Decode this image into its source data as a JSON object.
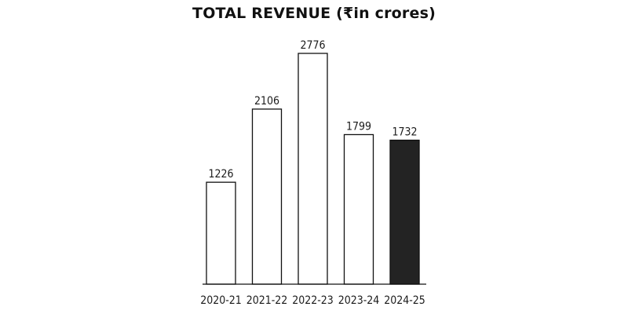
{
  "chart_data": {
    "type": "bar",
    "title": "TOTAL REVENUE (₹in crores)",
    "xlabel": "",
    "ylabel": "",
    "categories": [
      "2020-21",
      "2021-22",
      "2022-23",
      "2023-24",
      "2024-25"
    ],
    "values": [
      1226,
      2106,
      2776,
      1799,
      1732
    ],
    "data_labels": [
      "1226",
      "2106",
      "2776",
      "1799",
      "1732"
    ],
    "ylim": [
      0,
      2776
    ],
    "grid": false,
    "bar_fill": "#ffffff",
    "bar_stroke": "#111111",
    "highlight_index": 4,
    "highlight_fill": "#232323"
  }
}
